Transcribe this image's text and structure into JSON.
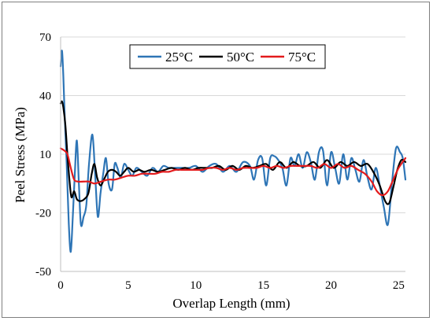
{
  "chart_data": {
    "type": "line",
    "title": "",
    "xlabel": "Overlap Length (mm)",
    "ylabel": "Peel Stress (MPa)",
    "xlim": [
      0,
      25.5
    ],
    "ylim": [
      -50,
      70
    ],
    "xticks": [
      0,
      5,
      10,
      15,
      20,
      25
    ],
    "yticks": [
      -50,
      -20,
      10,
      40,
      70
    ],
    "grid": "horizontal",
    "legend": "top-center",
    "series": [
      {
        "name": "25°C",
        "color": "#2e75b6",
        "x": [
          0,
          0.1,
          0.2,
          0.3,
          0.45,
          0.6,
          0.75,
          0.9,
          1.05,
          1.2,
          1.35,
          1.5,
          1.7,
          1.9,
          2.1,
          2.35,
          2.55,
          2.75,
          2.95,
          3.15,
          3.35,
          3.55,
          3.8,
          4.0,
          4.2,
          4.45,
          4.7,
          5.0,
          5.3,
          5.6,
          6.0,
          6.4,
          6.8,
          7.2,
          7.6,
          8.0,
          8.5,
          9.0,
          9.5,
          10.0,
          10.5,
          11.0,
          11.5,
          12.0,
          12.5,
          13.0,
          13.5,
          14.0,
          14.3,
          14.6,
          14.9,
          15.2,
          15.5,
          15.8,
          16.1,
          16.4,
          16.7,
          17.0,
          17.3,
          17.6,
          17.9,
          18.2,
          18.5,
          18.8,
          19.1,
          19.4,
          19.7,
          20.0,
          20.3,
          20.6,
          20.9,
          21.2,
          21.5,
          21.8,
          22.1,
          22.4,
          22.7,
          23.0,
          23.3,
          23.6,
          23.9,
          24.2,
          24.5,
          24.8,
          25.1,
          25.3,
          25.5
        ],
        "values": [
          55,
          63,
          50,
          30,
          5,
          -25,
          -40,
          -22,
          0,
          17,
          -5,
          -26,
          -22,
          -16,
          5,
          20,
          0,
          -22,
          -10,
          0,
          8,
          -5,
          -8,
          5,
          3,
          -2,
          5,
          2,
          -1,
          3,
          1,
          -1,
          3,
          1,
          4,
          3,
          3,
          3,
          3,
          4,
          1,
          4,
          5,
          1,
          4,
          1,
          6,
          4,
          -3,
          7,
          8,
          -6,
          8,
          9,
          7,
          3,
          -6,
          8,
          4,
          10,
          3,
          11,
          6,
          -3,
          11,
          12,
          -6,
          11,
          3,
          -5,
          10,
          -3,
          8,
          2,
          -4,
          7,
          -2,
          -8,
          3,
          -6,
          -17,
          -26,
          -5,
          13,
          11,
          8,
          -3
        ]
      },
      {
        "name": "50°C",
        "color": "#000000",
        "x": [
          0,
          0.1,
          0.2,
          0.35,
          0.5,
          0.65,
          0.8,
          1.0,
          1.2,
          1.45,
          1.75,
          2.05,
          2.3,
          2.5,
          2.7,
          2.95,
          3.2,
          3.5,
          3.8,
          4.1,
          4.4,
          4.7,
          5.0,
          5.4,
          5.8,
          6.2,
          6.7,
          7.2,
          7.7,
          8.2,
          8.7,
          9.2,
          9.7,
          10.2,
          10.7,
          11.2,
          11.7,
          12.2,
          12.7,
          13.2,
          13.7,
          14.2,
          14.7,
          15.2,
          15.7,
          16.2,
          16.7,
          17.2,
          17.7,
          18.2,
          18.7,
          19.2,
          19.7,
          20.2,
          20.7,
          21.2,
          21.7,
          22.2,
          22.7,
          23.2,
          23.6,
          24.0,
          24.3,
          24.6,
          24.9,
          25.2,
          25.5
        ],
        "values": [
          36,
          37,
          34,
          25,
          10,
          -3,
          -12,
          -9,
          -13,
          -14,
          -13,
          -10,
          0,
          5,
          -2,
          -6,
          -3,
          1,
          2,
          1,
          -1,
          1,
          3,
          1,
          2,
          1,
          2,
          1,
          2,
          3,
          2,
          3,
          2,
          3,
          3,
          3,
          4,
          2,
          4,
          2,
          4,
          3,
          4,
          5,
          2,
          6,
          3,
          6,
          4,
          4,
          6,
          3,
          7,
          3,
          6,
          4,
          6,
          4,
          5,
          0,
          -6,
          -14,
          -15,
          -7,
          2,
          7,
          6
        ]
      },
      {
        "name": "75°C",
        "color": "#e31a1c",
        "x": [
          0,
          0.25,
          0.5,
          0.75,
          1.0,
          1.3,
          1.7,
          2.1,
          2.5,
          3.0,
          3.5,
          4.0,
          4.5,
          5.0,
          5.5,
          6.0,
          6.5,
          7.0,
          7.5,
          8.0,
          8.5,
          9.0,
          9.5,
          10.0,
          10.5,
          11.0,
          11.5,
          12.0,
          12.5,
          13.0,
          13.5,
          14.0,
          14.5,
          15.0,
          15.5,
          16.0,
          16.5,
          17.0,
          17.5,
          18.0,
          18.5,
          19.0,
          19.5,
          20.0,
          20.5,
          21.0,
          21.5,
          22.0,
          22.5,
          23.0,
          23.4,
          23.8,
          24.2,
          24.6,
          25.0,
          25.5
        ],
        "values": [
          13,
          12,
          10,
          3,
          -3,
          -4,
          -4,
          -4,
          -5,
          -4,
          -3,
          -3,
          -2,
          -1,
          -1,
          0,
          0,
          0,
          1,
          1,
          2,
          2,
          2,
          2,
          2,
          3,
          3,
          2,
          3,
          2,
          3,
          3,
          3,
          4,
          3,
          4,
          3,
          4,
          4,
          4,
          4,
          3,
          5,
          3,
          5,
          3,
          4,
          2,
          0,
          -4,
          -9,
          -11,
          -9,
          -3,
          3,
          8
        ]
      }
    ]
  }
}
